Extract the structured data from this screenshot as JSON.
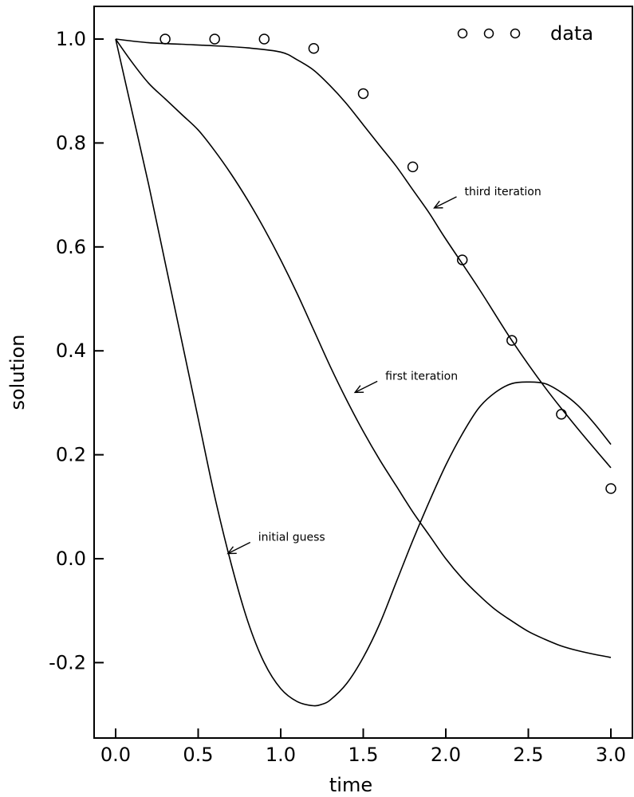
{
  "chart_data": {
    "type": "line",
    "xlabel": "time",
    "ylabel": "solution",
    "xlim": [
      -0.12,
      3.12
    ],
    "ylim": [
      -0.345,
      1.07
    ],
    "x_ticks": [
      0.0,
      0.5,
      1.0,
      1.5,
      2.0,
      2.5,
      3.0
    ],
    "x_tick_labels": [
      "0.0",
      "0.5",
      "1.0",
      "1.5",
      "2.0",
      "2.5",
      "3.0"
    ],
    "y_ticks": [
      -0.2,
      0.0,
      0.2,
      0.4,
      0.6,
      0.8,
      1.0
    ],
    "y_tick_labels": [
      "-0.2",
      "0.0",
      "0.2",
      "0.4",
      "0.6",
      "0.8",
      "1.0"
    ],
    "grid": false,
    "legend": {
      "placement": "top-right",
      "entries": [
        {
          "marker": "circle",
          "label": "data"
        }
      ]
    },
    "series": [
      {
        "name": "data",
        "kind": "scatter",
        "x": [
          0.3,
          0.6,
          0.9,
          1.2,
          1.5,
          1.8,
          2.1,
          2.4,
          2.7,
          3.0
        ],
        "y": [
          1.0,
          1.0,
          1.0,
          0.982,
          0.895,
          0.754,
          0.575,
          0.42,
          0.278,
          0.135
        ]
      },
      {
        "name": "third iteration",
        "kind": "line",
        "x": [
          0.0,
          0.2,
          0.4,
          0.6,
          0.8,
          1.0,
          1.1,
          1.2,
          1.3,
          1.4,
          1.5,
          1.6,
          1.7,
          1.8,
          1.9,
          2.0,
          2.2,
          2.4,
          2.6,
          2.8,
          3.0
        ],
        "y": [
          1.0,
          0.993,
          0.99,
          0.987,
          0.983,
          0.975,
          0.96,
          0.94,
          0.91,
          0.875,
          0.835,
          0.795,
          0.755,
          0.71,
          0.665,
          0.615,
          0.52,
          0.42,
          0.33,
          0.25,
          0.175
        ]
      },
      {
        "name": "first iteration",
        "kind": "line",
        "x": [
          0.0,
          0.1,
          0.2,
          0.3,
          0.4,
          0.5,
          0.6,
          0.7,
          0.8,
          0.9,
          1.0,
          1.1,
          1.2,
          1.3,
          1.4,
          1.5,
          1.6,
          1.7,
          1.8,
          1.9,
          2.0,
          2.1,
          2.2,
          2.3,
          2.4,
          2.5,
          2.6,
          2.7,
          2.8,
          2.9,
          3.0
        ],
        "y": [
          1.0,
          0.955,
          0.915,
          0.885,
          0.855,
          0.825,
          0.785,
          0.74,
          0.69,
          0.635,
          0.575,
          0.51,
          0.44,
          0.37,
          0.305,
          0.245,
          0.19,
          0.14,
          0.09,
          0.045,
          0.0,
          -0.038,
          -0.07,
          -0.098,
          -0.12,
          -0.14,
          -0.155,
          -0.168,
          -0.177,
          -0.184,
          -0.19
        ]
      },
      {
        "name": "initial guess",
        "kind": "line",
        "x": [
          0.0,
          0.1,
          0.2,
          0.3,
          0.4,
          0.5,
          0.6,
          0.7,
          0.8,
          0.9,
          1.0,
          1.1,
          1.2,
          1.25,
          1.3,
          1.4,
          1.5,
          1.6,
          1.7,
          1.8,
          1.9,
          2.0,
          2.1,
          2.2,
          2.3,
          2.4,
          2.5,
          2.6,
          2.7,
          2.8,
          2.9,
          3.0
        ],
        "y": [
          1.0,
          0.86,
          0.72,
          0.57,
          0.42,
          0.27,
          0.12,
          -0.01,
          -0.12,
          -0.2,
          -0.25,
          -0.275,
          -0.283,
          -0.28,
          -0.272,
          -0.24,
          -0.19,
          -0.125,
          -0.045,
          0.035,
          0.11,
          0.18,
          0.24,
          0.29,
          0.32,
          0.337,
          0.34,
          0.337,
          0.32,
          0.295,
          0.26,
          0.22
        ]
      }
    ],
    "annotations": [
      {
        "text": "third iteration",
        "arrow_to": [
          1.93,
          0.675
        ]
      },
      {
        "text": "first iteration",
        "arrow_to": [
          1.45,
          0.32
        ]
      },
      {
        "text": "initial guess",
        "arrow_to": [
          0.68,
          0.01
        ]
      }
    ]
  }
}
